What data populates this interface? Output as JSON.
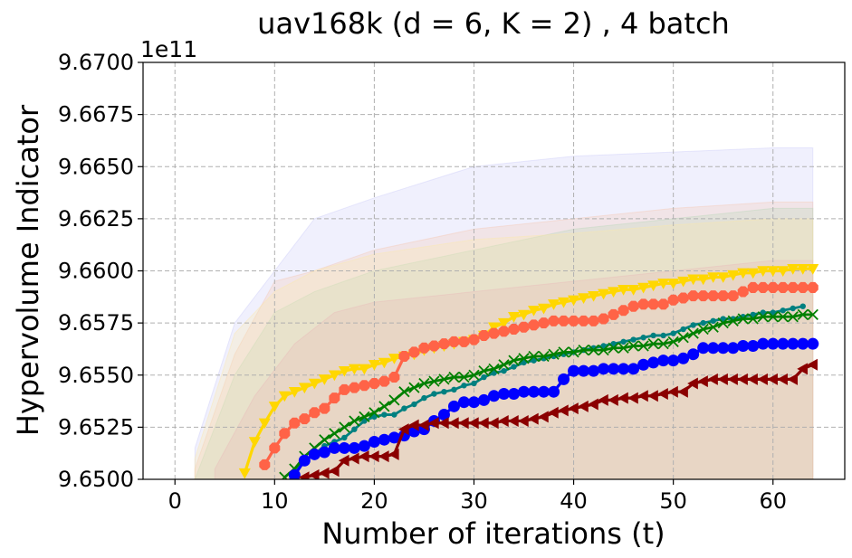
{
  "chart_data": {
    "type": "line",
    "title": "uav168k (d = 6, K = 2) , 4 batch",
    "xlabel": "Number of iterations (t)",
    "ylabel": "Hypervolume Indicator",
    "offset_label": "1e11",
    "xlim": [
      -3.2,
      67.2
    ],
    "ylim": [
      9.65,
      9.67
    ],
    "xticks": [
      0,
      10,
      20,
      30,
      40,
      50,
      60
    ],
    "xtick_labels": [
      "0",
      "10",
      "20",
      "30",
      "40",
      "50",
      "60"
    ],
    "yticks": [
      9.65,
      9.6525,
      9.655,
      9.6575,
      9.66,
      9.6625,
      9.665,
      9.6675,
      9.67
    ],
    "ytick_labels": [
      "9.6500",
      "9.6525",
      "9.6550",
      "9.6575",
      "9.6600",
      "9.6625",
      "9.6650",
      "9.6675",
      "9.6700"
    ],
    "grid": true,
    "bands": [
      {
        "color": "#c8c8f8",
        "x": [
          2,
          6,
          10,
          14,
          20,
          30,
          40,
          50,
          60,
          64
        ],
        "upper": [
          9.6515,
          9.6575,
          9.66,
          9.6625,
          9.6635,
          9.665,
          9.6655,
          9.6657,
          9.6659,
          9.6659
        ]
      },
      {
        "color": "#f5c6b0",
        "x": [
          2,
          6,
          10,
          14,
          20,
          30,
          40,
          50,
          60,
          64
        ],
        "upper": [
          9.6505,
          9.656,
          9.6595,
          9.66,
          9.661,
          9.662,
          9.6625,
          9.663,
          9.6633,
          9.6633
        ]
      },
      {
        "color": "#b8d8b8",
        "x": [
          2,
          6,
          10,
          14,
          20,
          30,
          40,
          50,
          60,
          64
        ],
        "upper": [
          9.65,
          9.655,
          9.658,
          9.659,
          9.66,
          9.661,
          9.662,
          9.6625,
          9.663,
          9.663
        ]
      },
      {
        "color": "#fde9a8",
        "x": [
          2,
          6,
          10,
          14,
          20,
          30,
          40,
          50,
          60,
          64
        ],
        "upper": [
          9.651,
          9.657,
          9.659,
          9.66,
          9.6608,
          9.6615,
          9.6618,
          9.6622,
          9.6625,
          9.6625
        ]
      },
      {
        "color": "#e8b8b8",
        "x": [
          4,
          8,
          12,
          16,
          20,
          30,
          40,
          50,
          60,
          64
        ],
        "upper": [
          9.6505,
          9.654,
          9.6565,
          9.658,
          9.6585,
          9.659,
          9.6595,
          9.66,
          9.6605,
          9.6605
        ]
      }
    ],
    "series": [
      {
        "name": "gold",
        "color": "#ffd700",
        "marker": "triangle_down",
        "markersize": 6.5,
        "linewidth": 3.2,
        "x": [
          7,
          8,
          9,
          10,
          11,
          12,
          13,
          14,
          15,
          16,
          17,
          18,
          19,
          20,
          21,
          22,
          23,
          24,
          25,
          26,
          27,
          28,
          29,
          30,
          31,
          32,
          33,
          34,
          35,
          36,
          37,
          38,
          39,
          40,
          41,
          42,
          43,
          44,
          45,
          46,
          47,
          48,
          49,
          50,
          51,
          52,
          53,
          54,
          55,
          56,
          57,
          58,
          59,
          60,
          61,
          62,
          63,
          64
        ],
        "y": [
          9.6503,
          9.6518,
          9.6527,
          9.6535,
          9.654,
          9.6542,
          9.6544,
          9.6546,
          9.6548,
          9.655,
          9.6552,
          9.6553,
          9.6553,
          9.6555,
          9.6556,
          9.6558,
          9.6559,
          9.656,
          9.6562,
          9.6563,
          9.6564,
          9.6565,
          9.6566,
          9.6567,
          9.6569,
          9.6573,
          9.6575,
          9.6578,
          9.6579,
          9.6581,
          9.6582,
          9.6584,
          9.6585,
          9.6586,
          9.6587,
          9.6588,
          9.6589,
          9.659,
          9.6591,
          9.6591,
          9.6592,
          9.6593,
          9.6594,
          9.6594,
          9.6595,
          9.6596,
          9.6596,
          9.6597,
          9.6597,
          9.6598,
          9.6599,
          9.6599,
          9.66,
          9.66,
          9.66,
          9.6601,
          9.6601,
          9.6601
        ]
      },
      {
        "name": "tomato",
        "color": "#ff6347",
        "marker": "octagon",
        "markersize": 6.5,
        "linewidth": 3.2,
        "x": [
          9,
          10,
          11,
          12,
          13,
          14,
          15,
          16,
          17,
          18,
          19,
          20,
          21,
          22,
          23,
          24,
          25,
          26,
          27,
          28,
          29,
          30,
          31,
          32,
          33,
          34,
          35,
          36,
          37,
          38,
          39,
          40,
          41,
          42,
          43,
          44,
          45,
          46,
          47,
          48,
          49,
          50,
          51,
          52,
          53,
          54,
          55,
          56,
          57,
          58,
          59,
          60,
          61,
          62,
          63,
          64
        ],
        "y": [
          9.6507,
          9.6515,
          9.6522,
          9.6527,
          9.6529,
          9.6532,
          9.6534,
          9.6539,
          9.6543,
          9.6544,
          9.6545,
          9.6546,
          9.6547,
          9.6549,
          9.6559,
          9.6561,
          9.6563,
          9.6564,
          9.6565,
          9.6566,
          9.6566,
          9.6567,
          9.6569,
          9.657,
          9.6571,
          9.6572,
          9.6573,
          9.6574,
          9.6575,
          9.6576,
          9.6576,
          9.6576,
          9.6576,
          9.6576,
          9.6577,
          9.6579,
          9.6581,
          9.6583,
          9.6584,
          9.6584,
          9.6584,
          9.6586,
          9.6587,
          9.6588,
          9.6588,
          9.6588,
          9.6588,
          9.6588,
          9.659,
          9.6592,
          9.6592,
          9.6592,
          9.6592,
          9.6592,
          9.6592,
          9.6592
        ]
      },
      {
        "name": "teal",
        "color": "#008080",
        "marker": "dot",
        "markersize": 3.2,
        "linewidth": 2.8,
        "x": [
          12,
          13,
          14,
          15,
          16,
          17,
          18,
          19,
          20,
          21,
          22,
          23,
          24,
          25,
          26,
          27,
          28,
          29,
          30,
          31,
          32,
          33,
          34,
          35,
          36,
          37,
          38,
          39,
          40,
          41,
          42,
          43,
          44,
          45,
          46,
          47,
          48,
          49,
          50,
          51,
          52,
          53,
          54,
          55,
          56,
          57,
          58,
          59,
          60,
          61,
          62,
          63
        ],
        "y": [
          9.6504,
          9.6509,
          9.6512,
          9.6516,
          9.6518,
          9.652,
          9.6524,
          9.6528,
          9.653,
          9.6531,
          9.6531,
          9.6534,
          9.6536,
          9.6539,
          9.6541,
          9.6542,
          9.6543,
          9.6545,
          9.6546,
          9.6549,
          9.6551,
          9.6552,
          9.6554,
          9.6556,
          9.6557,
          9.6558,
          9.6559,
          9.656,
          9.6561,
          9.6562,
          9.6563,
          9.6564,
          9.6565,
          9.6566,
          9.6567,
          9.6568,
          9.6569,
          9.6569,
          9.657,
          9.6572,
          9.6574,
          9.6575,
          9.6576,
          9.6577,
          9.6577,
          9.6578,
          9.6579,
          9.658,
          9.658,
          9.6581,
          9.6582,
          9.6583
        ]
      },
      {
        "name": "green",
        "color": "#008000",
        "marker": "x",
        "markersize": 5.5,
        "linewidth": 2.8,
        "x": [
          11,
          12,
          13,
          14,
          15,
          16,
          17,
          18,
          19,
          20,
          21,
          22,
          23,
          24,
          25,
          26,
          27,
          28,
          29,
          30,
          31,
          32,
          33,
          34,
          35,
          36,
          37,
          38,
          39,
          40,
          41,
          42,
          43,
          44,
          45,
          46,
          47,
          48,
          49,
          50,
          51,
          52,
          53,
          54,
          55,
          56,
          57,
          58,
          59,
          60,
          61,
          62,
          63,
          64
        ],
        "y": [
          9.6501,
          9.6505,
          9.6511,
          9.6515,
          9.6519,
          9.6522,
          9.6525,
          9.6528,
          9.653,
          9.6532,
          9.6535,
          9.6538,
          9.6542,
          9.6544,
          9.6546,
          9.6547,
          9.6548,
          9.6549,
          9.6549,
          9.655,
          9.6552,
          9.6553,
          9.6555,
          9.6557,
          9.6558,
          9.6559,
          9.6559,
          9.656,
          9.6561,
          9.6561,
          9.6562,
          9.6562,
          9.6562,
          9.6563,
          9.6563,
          9.6564,
          9.6564,
          9.6565,
          9.6565,
          9.6566,
          9.6568,
          9.657,
          9.6572,
          9.6573,
          9.6575,
          9.6576,
          9.6577,
          9.6577,
          9.6578,
          9.6578,
          9.6578,
          9.6578,
          9.6579,
          9.6579
        ]
      },
      {
        "name": "blue",
        "color": "#0000ff",
        "marker": "circle",
        "markersize": 6.5,
        "linewidth": 3.2,
        "x": [
          11,
          12,
          13,
          14,
          15,
          16,
          17,
          18,
          19,
          20,
          21,
          22,
          23,
          24,
          25,
          26,
          27,
          28,
          29,
          30,
          31,
          32,
          33,
          34,
          35,
          36,
          37,
          38,
          39,
          40,
          41,
          42,
          43,
          44,
          45,
          46,
          47,
          48,
          49,
          50,
          51,
          52,
          53,
          54,
          55,
          56,
          57,
          58,
          59,
          60,
          61,
          62,
          63,
          64
        ],
        "y": [
          9.6497,
          9.6502,
          9.6509,
          9.6512,
          9.6513,
          9.6515,
          9.6515,
          9.6515,
          9.6516,
          9.6518,
          9.6519,
          9.652,
          9.6521,
          9.6523,
          9.6524,
          9.6528,
          9.6531,
          9.6535,
          9.6537,
          9.6537,
          9.6538,
          9.654,
          9.6541,
          9.6541,
          9.6542,
          9.6542,
          9.6542,
          9.6542,
          9.6548,
          9.6552,
          9.6552,
          9.6552,
          9.6553,
          9.6553,
          9.6553,
          9.6553,
          9.6555,
          9.6556,
          9.6557,
          9.6557,
          9.6558,
          9.656,
          9.6563,
          9.6563,
          9.6563,
          9.6563,
          9.6564,
          9.6564,
          9.6565,
          9.6565,
          9.6565,
          9.6565,
          9.6565,
          9.6565
        ]
      },
      {
        "name": "darkred",
        "color": "#8b0000",
        "marker": "triangle_left",
        "markersize": 6.5,
        "linewidth": 3.2,
        "x": [
          13,
          14,
          15,
          16,
          17,
          18,
          19,
          20,
          21,
          22,
          23,
          24,
          25,
          26,
          27,
          28,
          29,
          30,
          31,
          32,
          33,
          34,
          35,
          36,
          37,
          38,
          39,
          40,
          41,
          42,
          43,
          44,
          45,
          46,
          47,
          48,
          49,
          50,
          51,
          52,
          53,
          54,
          55,
          56,
          57,
          58,
          59,
          60,
          61,
          62,
          63,
          64
        ],
        "y": [
          9.6501,
          9.6502,
          9.6503,
          9.6504,
          9.6509,
          9.651,
          9.6511,
          9.6511,
          9.6511,
          9.6512,
          9.6524,
          9.6526,
          9.6526,
          9.6527,
          9.6527,
          9.6527,
          9.6527,
          9.6527,
          9.6527,
          9.6527,
          9.6528,
          9.6528,
          9.6528,
          9.6529,
          9.653,
          9.6532,
          9.6533,
          9.6534,
          9.6535,
          9.6536,
          9.6538,
          9.6538,
          9.6539,
          9.6539,
          9.654,
          9.654,
          9.6541,
          9.6542,
          9.6542,
          9.6546,
          9.6547,
          9.6548,
          9.6548,
          9.6548,
          9.6548,
          9.6548,
          9.6548,
          9.6548,
          9.6548,
          9.6548,
          9.6553,
          9.6555
        ]
      }
    ]
  }
}
